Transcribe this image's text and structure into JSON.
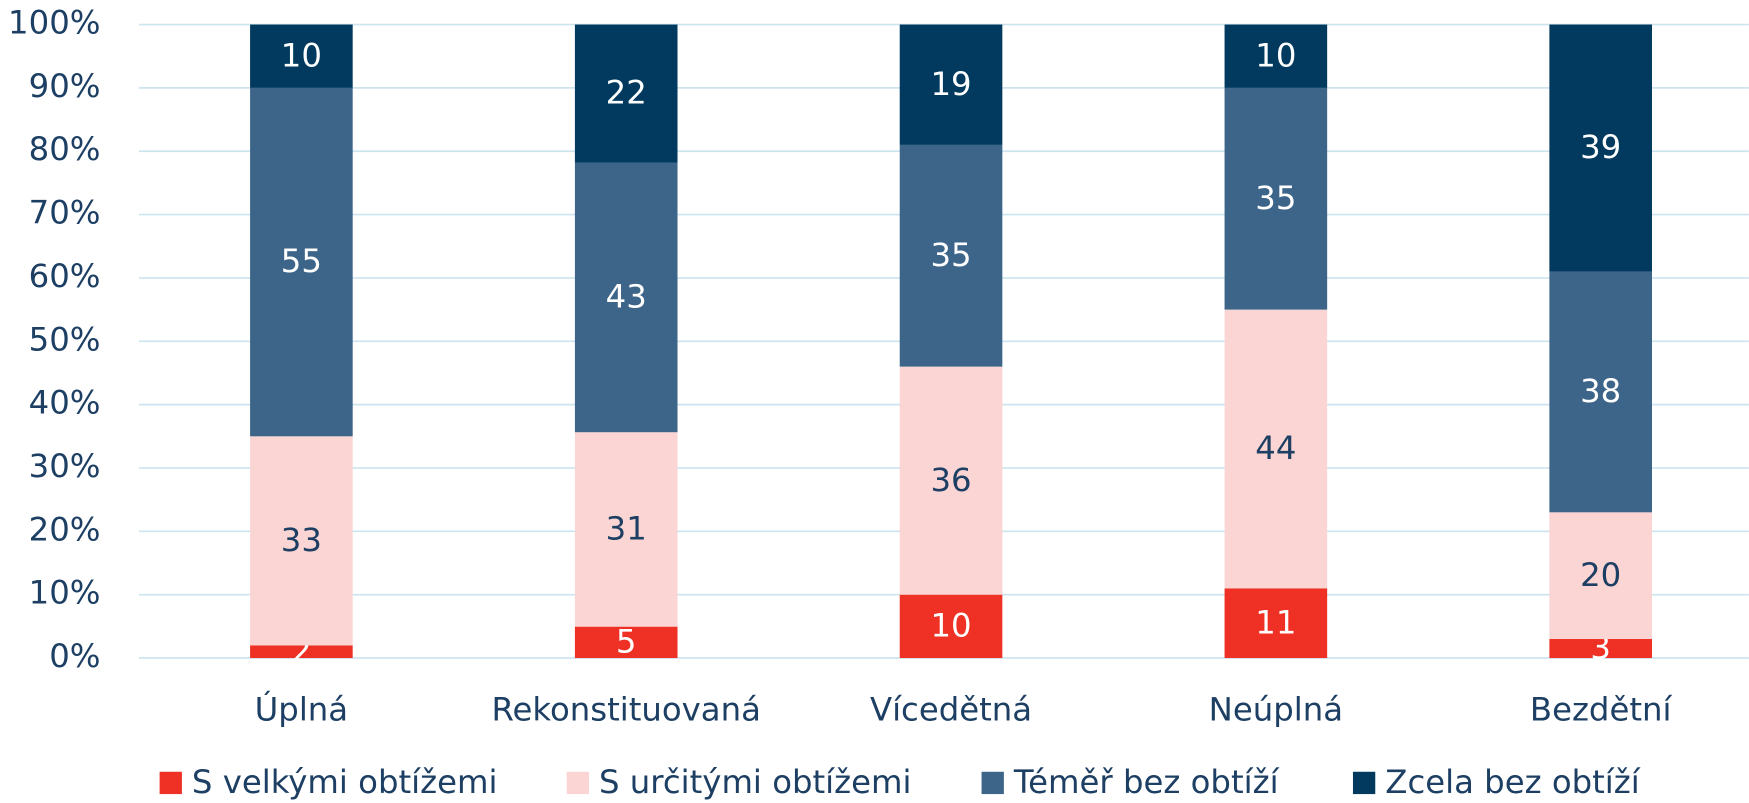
{
  "chart_data": {
    "type": "bar",
    "stacking": "percent",
    "categories": [
      "Úplná",
      "Rekonstituovaná",
      "Vícedětná",
      "Neúplná",
      "Bezdětní"
    ],
    "series": [
      {
        "name": "S velkými obtížemi",
        "color": "#ee3124",
        "values": [
          2,
          5,
          10,
          11,
          3
        ]
      },
      {
        "name": "S určitými obtížemi",
        "color": "#fbd5d3",
        "values": [
          33,
          31,
          36,
          44,
          20
        ]
      },
      {
        "name": "Téměř bez obtíží",
        "color": "#3d6589",
        "values": [
          55,
          43,
          35,
          35,
          38
        ]
      },
      {
        "name": "Zcela bez obtíží",
        "color": "#013a5e",
        "values": [
          10,
          22,
          19,
          10,
          39
        ]
      }
    ],
    "ylim": [
      0,
      100
    ],
    "yticks": [
      {
        "value": 0,
        "label": "0%"
      },
      {
        "value": 10,
        "label": "10%"
      },
      {
        "value": 20,
        "label": "20%"
      },
      {
        "value": 30,
        "label": "30%"
      },
      {
        "value": 40,
        "label": "40%"
      },
      {
        "value": 50,
        "label": "50%"
      },
      {
        "value": 60,
        "label": "60%"
      },
      {
        "value": 70,
        "label": "70%"
      },
      {
        "value": 80,
        "label": "80%"
      },
      {
        "value": 90,
        "label": "90%"
      },
      {
        "value": 100,
        "label": "100%"
      }
    ],
    "grid": true,
    "legend": "bottom"
  }
}
